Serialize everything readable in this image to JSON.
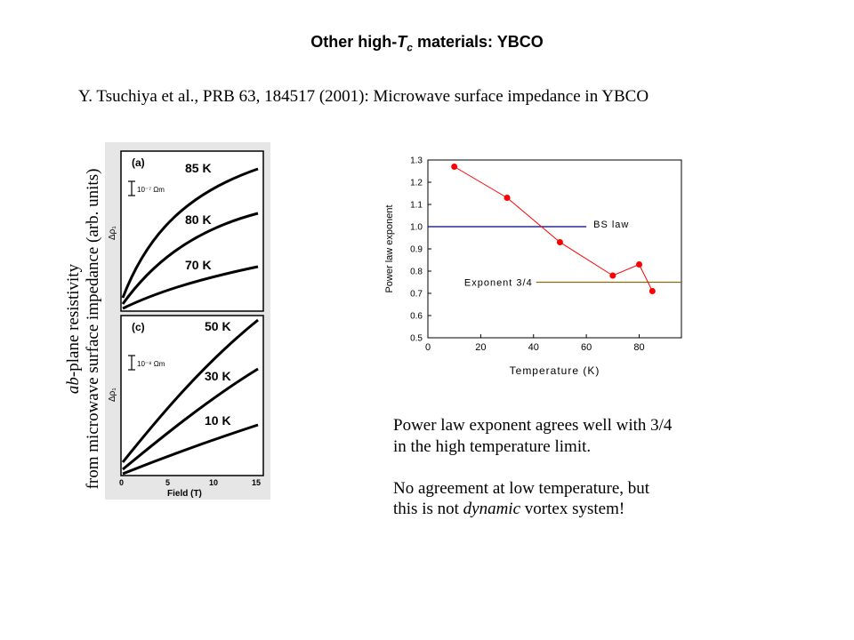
{
  "slide": {
    "title_prefix": "Other high-",
    "title_T": "T",
    "title_sub": "c",
    "title_suffix": " materials: YBCO",
    "citation": "Y. Tsuchiya et al., PRB 63, 184517 (2001): Microwave surface impedance in YBCO",
    "ylabel_italic": "ab",
    "ylabel_line1_rest": "-plane resistivity",
    "ylabel_line2": "from microwave surface impedance (arb. units)",
    "note1_line1": "Power law exponent agrees well with 3/4",
    "note1_line2": "in the high temperature limit.",
    "note2_line1": "No agreement at low temperature, but",
    "note2_pre": "this is not ",
    "note2_italic": "dynamic",
    "note2_post": " vortex system!"
  },
  "left_figure": {
    "panel_a": {
      "tag": "(a)",
      "scale": "10⁻⁷ Ωm",
      "curves": [
        "85  K",
        "80  K",
        "70  K"
      ]
    },
    "panel_c": {
      "tag": "(c)",
      "scale": "10⁻⁸ Ωm",
      "curves": [
        "50  K",
        "30  K",
        "10  K"
      ]
    },
    "ylabel": "Δρ₁",
    "xticks": [
      "0",
      "5",
      "10",
      "15"
    ],
    "xlabel": "Field (T)"
  },
  "chart_data": {
    "type": "scatter",
    "xlabel": "Temperature (K)",
    "ylabel": "Power law exponent",
    "xlim": [
      0,
      96
    ],
    "ylim": [
      0.5,
      1.3
    ],
    "xticks": [
      "0",
      "20",
      "40",
      "60",
      "80"
    ],
    "yticks": [
      "0.5",
      "0.6",
      "0.7",
      "0.8",
      "0.9",
      "1.0",
      "1.1",
      "1.2",
      "1.3"
    ],
    "series": [
      {
        "x": [
          10,
          30,
          50,
          70,
          80,
          85
        ],
        "y": [
          1.27,
          1.13,
          0.93,
          0.78,
          0.83,
          0.71
        ],
        "color": "#ff0000"
      }
    ],
    "reference_lines": [
      {
        "name": "BS law",
        "y": 1.0,
        "x_from": 0,
        "x_to": 60,
        "color": "#000080"
      },
      {
        "name": "Exponent 3/4",
        "y": 0.75,
        "x_from": 41,
        "x_to": 96,
        "color": "#8b6914"
      }
    ],
    "grid": false
  }
}
